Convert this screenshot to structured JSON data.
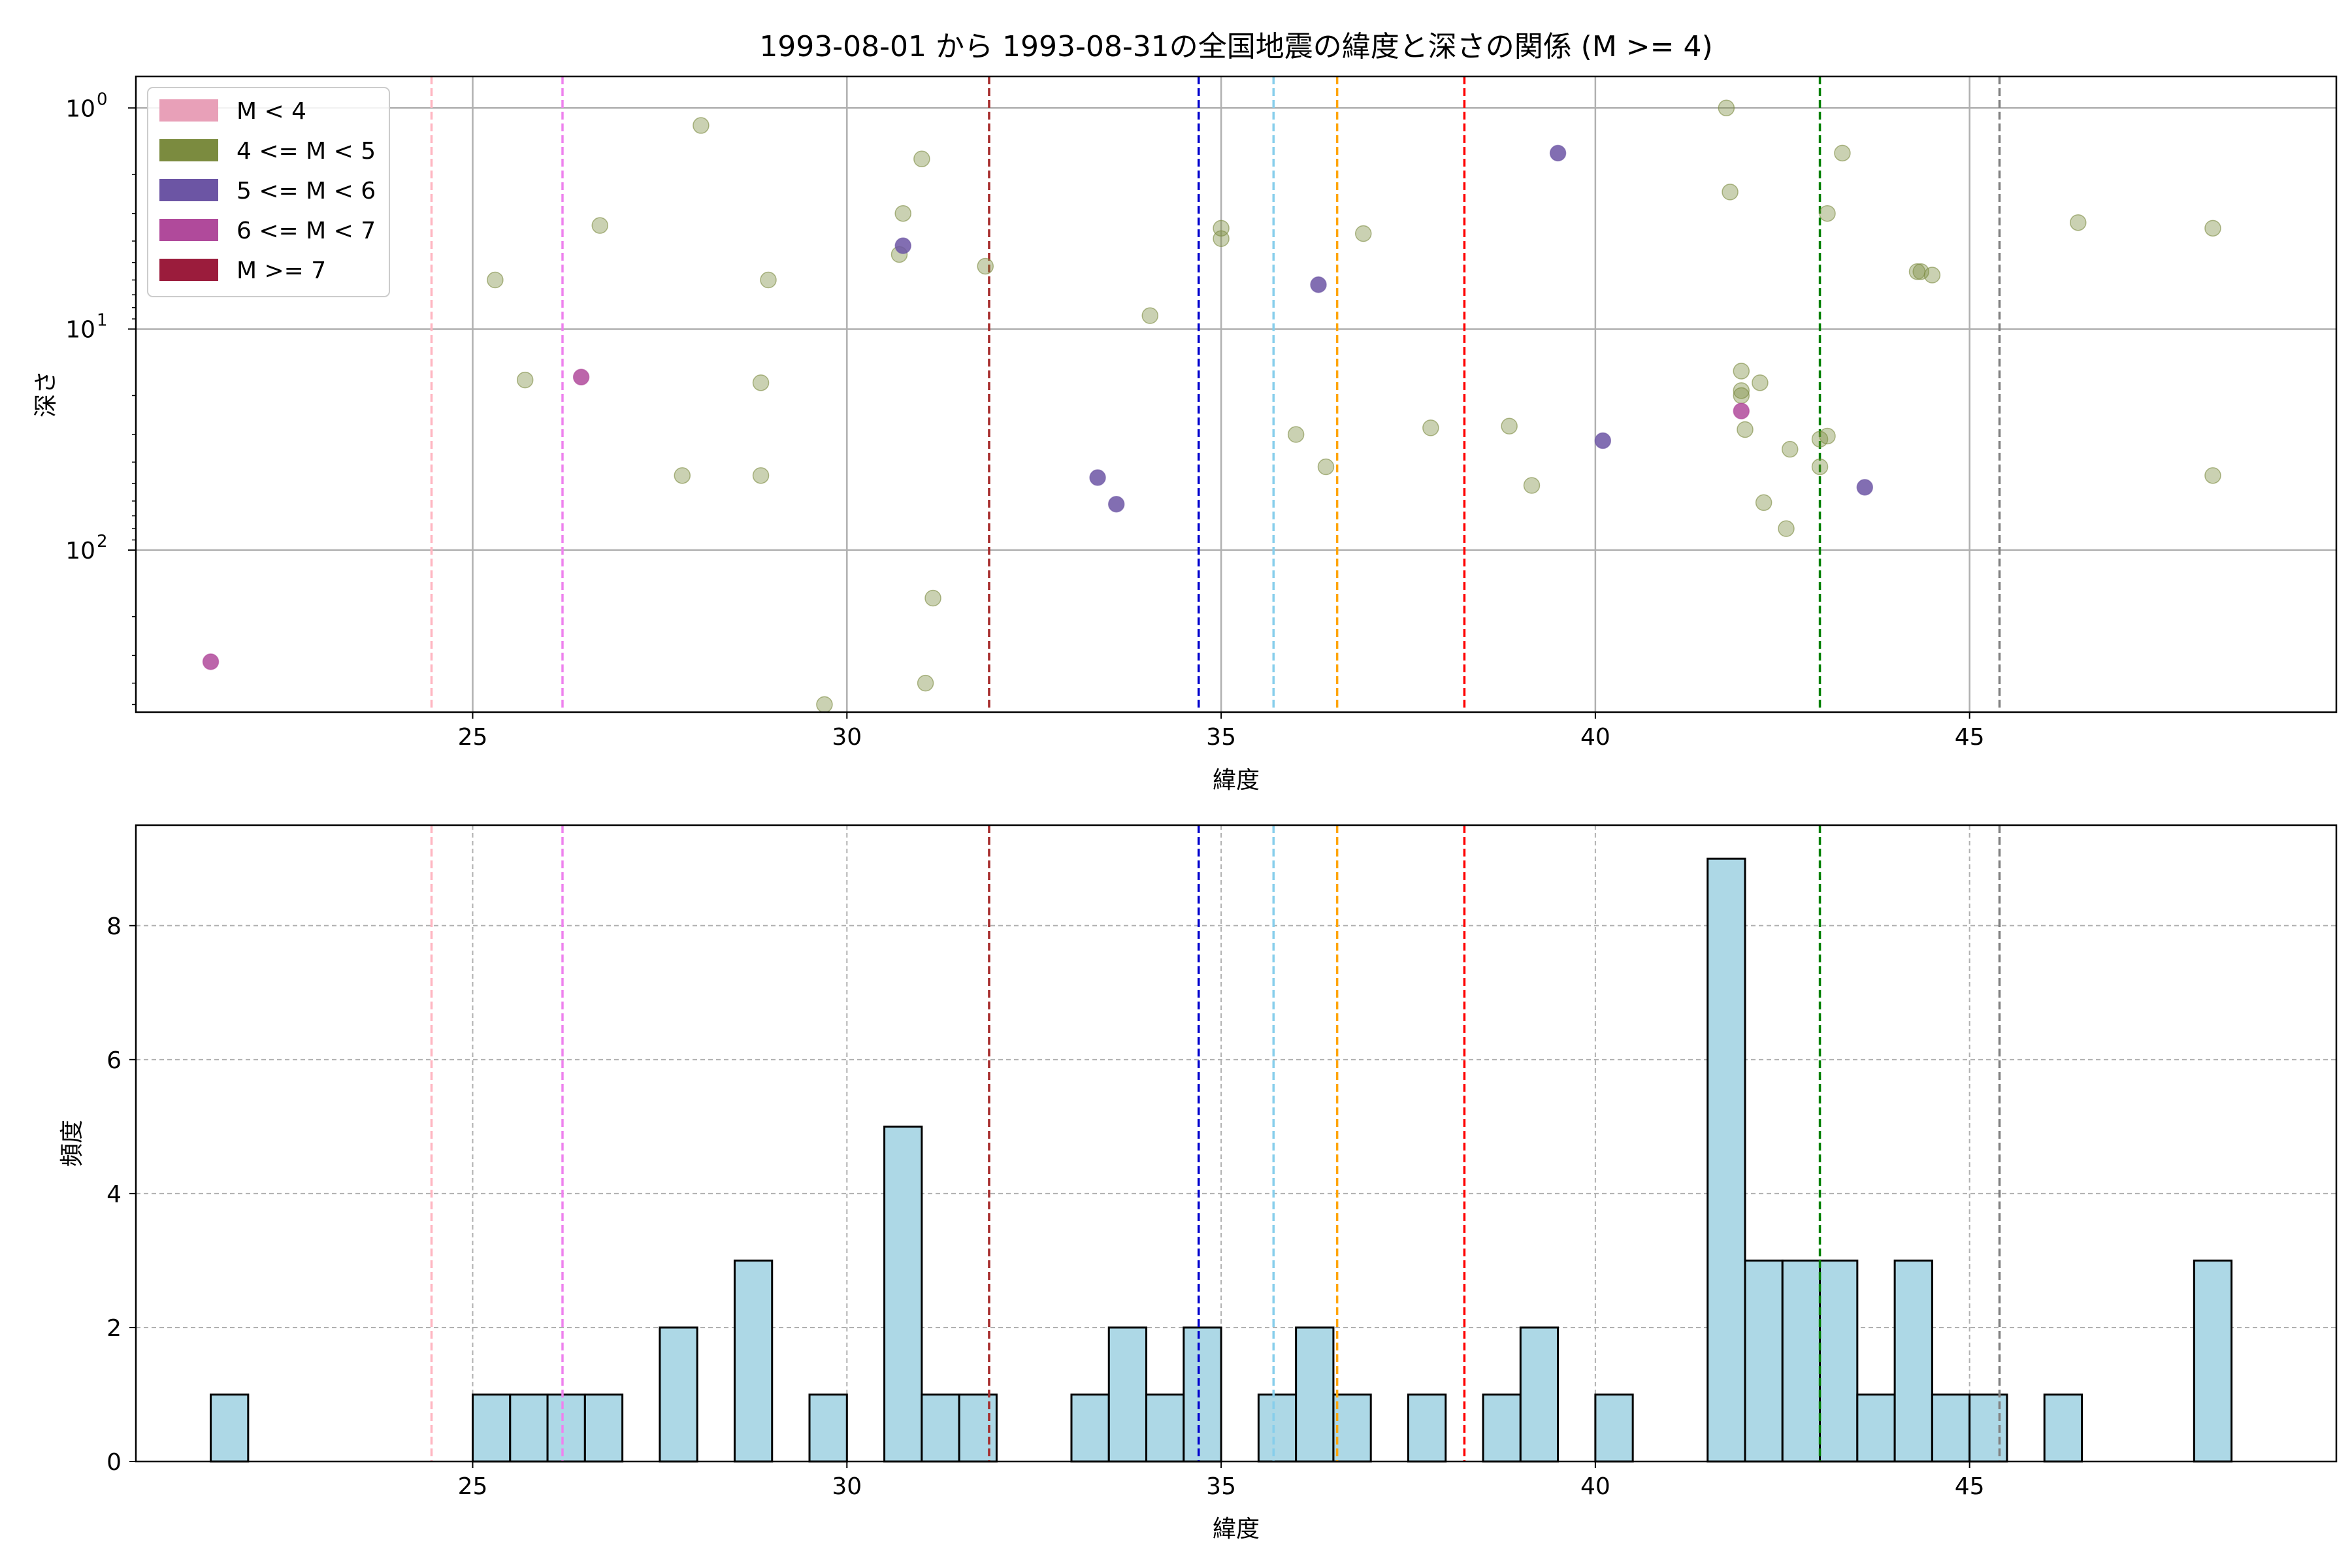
{
  "chart_data": [
    {
      "type": "scatter",
      "title": "1993-08-01 から 1993-08-31の全国地震の緯度と深さの関係 (M >= 4)",
      "xlabel": "緯度",
      "ylabel": "深さ",
      "xlim": [
        20.5,
        49.9
      ],
      "y_scale": "log",
      "y_inverted": true,
      "ylim": [
        541,
        0.72
      ],
      "x_ticks": [
        "25",
        "30",
        "35",
        "40",
        "45"
      ],
      "y_ticks": [
        "10^0",
        "10^1",
        "10^2"
      ],
      "grid": true,
      "legend_position": "top-left",
      "legend": [
        {
          "label": "M < 4",
          "color": "#e8a0b8"
        },
        {
          "label": "4 <= M < 5",
          "color": "#7b8b3f"
        },
        {
          "label": "5 <= M < 6",
          "color": "#6c55a4"
        },
        {
          "label": "6 <= M < 7",
          "color": "#b04a9b"
        },
        {
          "label": "M >= 7",
          "color": "#9b1c3c"
        }
      ],
      "series": [
        {
          "class": "4 <= M < 5",
          "color": "#7b8b3f",
          "points": [
            [
              25.3,
              6.0
            ],
            [
              25.7,
              17.0
            ],
            [
              26.7,
              3.4
            ],
            [
              27.8,
              46.0
            ],
            [
              28.05,
              1.2
            ],
            [
              28.85,
              17.5
            ],
            [
              28.85,
              46.0
            ],
            [
              28.95,
              6.0
            ],
            [
              29.7,
              500.0
            ],
            [
              30.7,
              4.6
            ],
            [
              30.75,
              3.0
            ],
            [
              31.0,
              1.7
            ],
            [
              31.05,
              400.0
            ],
            [
              31.15,
              165.0
            ],
            [
              31.85,
              5.2
            ],
            [
              34.05,
              8.7
            ],
            [
              35.0,
              3.5
            ],
            [
              35.0,
              3.9
            ],
            [
              36.0,
              30.0
            ],
            [
              36.4,
              42.0
            ],
            [
              36.9,
              3.7
            ],
            [
              37.8,
              28.0
            ],
            [
              38.85,
              27.5
            ],
            [
              39.15,
              51.0
            ],
            [
              41.75,
              1.0
            ],
            [
              41.8,
              2.4
            ],
            [
              41.95,
              20.0
            ],
            [
              41.95,
              19.0
            ],
            [
              41.95,
              15.5
            ],
            [
              42.0,
              28.5
            ],
            [
              42.2,
              17.5
            ],
            [
              42.25,
              61.0
            ],
            [
              42.55,
              80.0
            ],
            [
              42.6,
              35.0
            ],
            [
              43.0,
              31.5
            ],
            [
              43.0,
              42.0
            ],
            [
              43.1,
              30.5
            ],
            [
              43.1,
              3.0
            ],
            [
              43.3,
              1.6
            ],
            [
              44.3,
              5.5
            ],
            [
              44.35,
              5.5
            ],
            [
              44.5,
              5.7
            ],
            [
              46.45,
              3.3
            ],
            [
              48.25,
              3.5
            ],
            [
              48.25,
              46.0
            ]
          ]
        },
        {
          "class": "5 <= M < 6",
          "color": "#6c55a4",
          "points": [
            [
              30.75,
              4.2
            ],
            [
              33.35,
              47.0
            ],
            [
              33.6,
              62.0
            ],
            [
              36.3,
              6.3
            ],
            [
              39.5,
              1.6
            ],
            [
              40.1,
              32.0
            ],
            [
              43.6,
              52.0
            ]
          ]
        },
        {
          "class": "6 <= M < 7",
          "color": "#b04a9b",
          "points": [
            [
              21.5,
              320.0
            ],
            [
              26.45,
              16.5
            ],
            [
              41.95,
              23.5
            ]
          ]
        }
      ],
      "reference_lines": [
        {
          "x": 24.45,
          "color": "#ffb6c1"
        },
        {
          "x": 26.2,
          "color": "#ee82ee"
        },
        {
          "x": 31.9,
          "color": "#a52a2a"
        },
        {
          "x": 34.7,
          "color": "#0000cd"
        },
        {
          "x": 35.7,
          "color": "#87ceeb"
        },
        {
          "x": 36.55,
          "color": "#ffa500"
        },
        {
          "x": 38.25,
          "color": "#ff0000"
        },
        {
          "x": 43.0,
          "color": "#008000"
        },
        {
          "x": 45.4,
          "color": "#808080"
        }
      ]
    },
    {
      "type": "bar",
      "xlabel": "緯度",
      "ylabel": "頻度",
      "xlim": [
        20.5,
        49.9
      ],
      "ylim": [
        0,
        9.5
      ],
      "x_ticks": [
        "25",
        "30",
        "35",
        "40",
        "45"
      ],
      "y_ticks": [
        "0",
        "2",
        "4",
        "6",
        "8"
      ],
      "grid": true,
      "bar_color": "#add8e6",
      "bin_width": 0.5,
      "bins": [
        {
          "x": 21.5,
          "count": 1
        },
        {
          "x": 25.0,
          "count": 1
        },
        {
          "x": 25.5,
          "count": 1
        },
        {
          "x": 26.0,
          "count": 1
        },
        {
          "x": 26.5,
          "count": 1
        },
        {
          "x": 27.5,
          "count": 2
        },
        {
          "x": 28.5,
          "count": 3
        },
        {
          "x": 29.5,
          "count": 1
        },
        {
          "x": 30.5,
          "count": 5
        },
        {
          "x": 31.0,
          "count": 1
        },
        {
          "x": 31.5,
          "count": 1
        },
        {
          "x": 33.0,
          "count": 1
        },
        {
          "x": 33.5,
          "count": 2
        },
        {
          "x": 34.0,
          "count": 1
        },
        {
          "x": 34.5,
          "count": 2
        },
        {
          "x": 35.5,
          "count": 1
        },
        {
          "x": 36.0,
          "count": 2
        },
        {
          "x": 36.5,
          "count": 1
        },
        {
          "x": 37.5,
          "count": 1
        },
        {
          "x": 38.5,
          "count": 1
        },
        {
          "x": 39.0,
          "count": 2
        },
        {
          "x": 40.0,
          "count": 1
        },
        {
          "x": 41.5,
          "count": 9
        },
        {
          "x": 42.0,
          "count": 3
        },
        {
          "x": 42.5,
          "count": 3
        },
        {
          "x": 43.0,
          "count": 3
        },
        {
          "x": 43.5,
          "count": 1
        },
        {
          "x": 44.0,
          "count": 3
        },
        {
          "x": 44.5,
          "count": 1
        },
        {
          "x": 45.0,
          "count": 1
        },
        {
          "x": 46.0,
          "count": 1
        },
        {
          "x": 48.0,
          "count": 3
        }
      ],
      "reference_lines": [
        {
          "x": 24.45,
          "color": "#ffb6c1"
        },
        {
          "x": 26.2,
          "color": "#ee82ee"
        },
        {
          "x": 31.9,
          "color": "#a52a2a"
        },
        {
          "x": 34.7,
          "color": "#0000cd"
        },
        {
          "x": 35.7,
          "color": "#87ceeb"
        },
        {
          "x": 36.55,
          "color": "#ffa500"
        },
        {
          "x": 38.25,
          "color": "#ff0000"
        },
        {
          "x": 43.0,
          "color": "#008000"
        },
        {
          "x": 45.4,
          "color": "#808080"
        }
      ]
    }
  ]
}
